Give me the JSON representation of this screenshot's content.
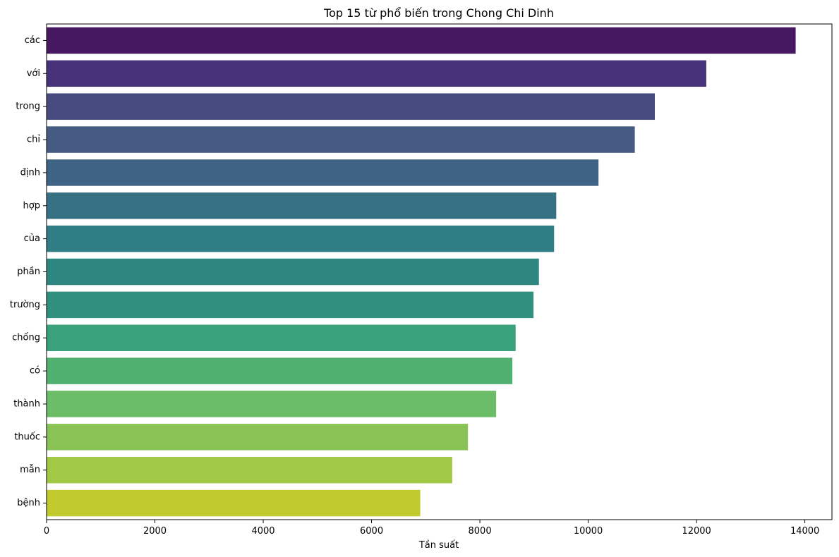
{
  "chart_data": {
    "type": "bar",
    "orientation": "horizontal",
    "title": "Top 15 từ phổ biến trong Chong Chi Dinh",
    "xlabel": "Tần suất",
    "ylabel": "",
    "xlim": [
      0,
      14500
    ],
    "x_ticks": [
      0,
      2000,
      4000,
      6000,
      8000,
      10000,
      12000,
      14000
    ],
    "grid": false,
    "legend": "none",
    "categories": [
      "các",
      "với",
      "trong",
      "chỉ",
      "định",
      "hợp",
      "của",
      "phần",
      "trường",
      "chống",
      "có",
      "thành",
      "thuốc",
      "mẫn",
      "bệnh"
    ],
    "values": [
      13830,
      12180,
      11230,
      10860,
      10190,
      9410,
      9370,
      9090,
      8990,
      8660,
      8600,
      8300,
      7780,
      7490,
      6900
    ],
    "colors": [
      "#46185f",
      "#48327a",
      "#484b80",
      "#455b83",
      "#3f6385",
      "#377184",
      "#2f7e86",
      "#2d8780",
      "#2e907d",
      "#3aa27a",
      "#50b070",
      "#6cbd68",
      "#8ac355",
      "#a2c945",
      "#c2cb2e"
    ]
  }
}
